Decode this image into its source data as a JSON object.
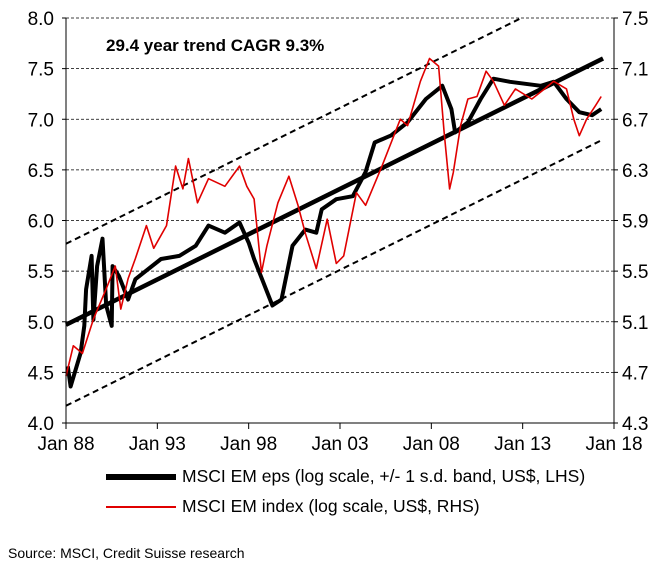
{
  "chart_data": {
    "type": "line",
    "annotation": "29.4 year trend CAGR 9.3%",
    "x_ticks": [
      "Jan 88",
      "Jan 93",
      "Jan 98",
      "Jan 03",
      "Jan 08",
      "Jan 13",
      "Jan 18"
    ],
    "x_range": [
      1988,
      2018
    ],
    "y_left": {
      "range": [
        4.0,
        8.0
      ],
      "ticks": [
        "4.0",
        "4.5",
        "5.0",
        "5.5",
        "6.0",
        "6.5",
        "7.0",
        "7.5",
        "8.0"
      ]
    },
    "y_right": {
      "range": [
        4.3,
        7.5
      ],
      "ticks": [
        "4.3",
        "4.7",
        "5.1",
        "5.5",
        "5.9",
        "6.3",
        "6.7",
        "7.1",
        "7.5"
      ]
    },
    "grid": "horizontal dashed",
    "legend_placement": "bottom",
    "trend": {
      "axis": "left",
      "start": [
        1988,
        4.97
      ],
      "end": [
        2017.4,
        7.6
      ],
      "band_sd": 0.8
    },
    "series": [
      {
        "name": "MSCI EM eps (log scale, +/- 1 s.d. band, US$, LHS)",
        "axis": "left",
        "color": "#000000",
        "x": [
          1988.1,
          1988.25,
          1988.8,
          1989.0,
          1989.1,
          1989.4,
          1989.5,
          1989.7,
          1990.0,
          1990.2,
          1990.5,
          1990.55,
          1990.9,
          1991.4,
          1991.8,
          1993.2,
          1994.2,
          1995.1,
          1995.8,
          1996.7,
          1997.5,
          1998.0,
          1998.3,
          1998.8,
          1999.3,
          1999.8,
          2000.4,
          2001.1,
          2001.7,
          2002.0,
          2002.8,
          2003.7,
          2004.4,
          2004.9,
          2005.8,
          2006.7,
          2007.7,
          2008.6,
          2009.1,
          2009.3,
          2010.0,
          2010.7,
          2011.4,
          2012.3,
          2014.0,
          2014.7,
          2015.4,
          2016.1,
          2016.8,
          2017.3
        ],
        "y": [
          4.56,
          4.36,
          4.69,
          4.96,
          5.32,
          5.65,
          5.02,
          5.55,
          5.82,
          5.16,
          4.96,
          5.55,
          5.45,
          5.22,
          5.42,
          5.62,
          5.65,
          5.75,
          5.95,
          5.88,
          5.98,
          5.78,
          5.62,
          5.39,
          5.16,
          5.22,
          5.75,
          5.91,
          5.88,
          6.11,
          6.21,
          6.24,
          6.48,
          6.77,
          6.84,
          6.97,
          7.2,
          7.33,
          7.1,
          6.87,
          6.97,
          7.2,
          7.4,
          7.37,
          7.33,
          7.37,
          7.2,
          7.07,
          7.04,
          7.1
        ]
      },
      {
        "name": "MSCI EM index (log scale, US$, RHS)",
        "axis": "right",
        "color": "#e00000",
        "x": [
          1988.0,
          1988.4,
          1988.9,
          1989.5,
          1990.2,
          1990.7,
          1991.0,
          1991.4,
          1991.8,
          1992.4,
          1992.8,
          1993.5,
          1994.0,
          1994.4,
          1994.7,
          1995.2,
          1995.8,
          1996.7,
          1997.5,
          1997.9,
          1998.3,
          1998.7,
          1999.0,
          1999.6,
          2000.2,
          2000.7,
          2001.1,
          2001.7,
          2002.3,
          2002.8,
          2003.2,
          2003.9,
          2004.4,
          2005.3,
          2006.3,
          2006.7,
          2007.4,
          2007.9,
          2008.4,
          2008.7,
          2009.0,
          2009.2,
          2009.6,
          2010.0,
          2010.5,
          2011.0,
          2011.4,
          2012.0,
          2012.6,
          2013.5,
          2014.2,
          2014.7,
          2015.4,
          2015.8,
          2016.1,
          2016.5,
          2017.0,
          2017.3
        ],
        "y": [
          4.67,
          4.91,
          4.85,
          5.12,
          5.36,
          5.54,
          5.2,
          5.44,
          5.6,
          5.86,
          5.68,
          5.86,
          6.33,
          6.15,
          6.39,
          6.04,
          6.23,
          6.17,
          6.33,
          6.17,
          6.07,
          5.49,
          5.7,
          6.04,
          6.25,
          6.02,
          5.8,
          5.52,
          5.91,
          5.56,
          5.62,
          6.12,
          6.02,
          6.33,
          6.7,
          6.65,
          7.0,
          7.18,
          7.12,
          6.6,
          6.15,
          6.28,
          6.65,
          6.86,
          6.88,
          7.08,
          7.0,
          6.81,
          6.94,
          6.86,
          6.94,
          7.0,
          6.94,
          6.7,
          6.57,
          6.7,
          6.81,
          6.88
        ]
      }
    ]
  },
  "source": "Source: MSCI, Credit Suisse research"
}
